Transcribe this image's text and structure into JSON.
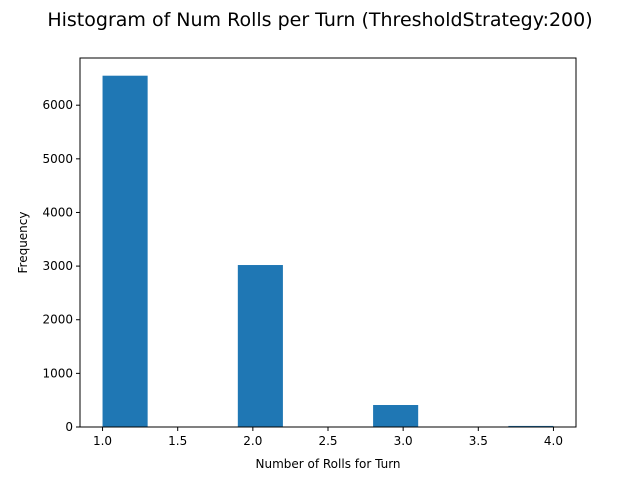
{
  "chart_data": {
    "type": "bar",
    "title": "Histogram of Num Rolls per Turn (ThresholdStrategy:200)",
    "xlabel": "Number of Rolls for Turn",
    "ylabel": "Frequency",
    "xlim": [
      0.85,
      4.15
    ],
    "ylim": [
      0,
      6880
    ],
    "xticks": [
      "1.0",
      "1.5",
      "2.0",
      "2.5",
      "3.0",
      "3.5",
      "4.0"
    ],
    "xtick_values": [
      1.0,
      1.5,
      2.0,
      2.5,
      3.0,
      3.5,
      4.0
    ],
    "yticks": [
      "0",
      "1000",
      "2000",
      "3000",
      "4000",
      "5000",
      "6000"
    ],
    "ytick_values": [
      0,
      1000,
      2000,
      3000,
      4000,
      5000,
      6000
    ],
    "bins": [
      {
        "x0": 1.0,
        "x1": 1.3,
        "value": 6550
      },
      {
        "x0": 1.3,
        "x1": 1.6,
        "value": 0
      },
      {
        "x0": 1.6,
        "x1": 1.9,
        "value": 0
      },
      {
        "x0": 1.9,
        "x1": 2.2,
        "value": 3020
      },
      {
        "x0": 2.2,
        "x1": 2.5,
        "value": 0
      },
      {
        "x0": 2.5,
        "x1": 2.8,
        "value": 0
      },
      {
        "x0": 2.8,
        "x1": 3.1,
        "value": 410
      },
      {
        "x0": 3.1,
        "x1": 3.4,
        "value": 0
      },
      {
        "x0": 3.4,
        "x1": 3.7,
        "value": 0
      },
      {
        "x0": 3.7,
        "x1": 4.0,
        "value": 20
      }
    ],
    "bar_color": "#1f77b4",
    "grid": false,
    "legend": "none"
  }
}
